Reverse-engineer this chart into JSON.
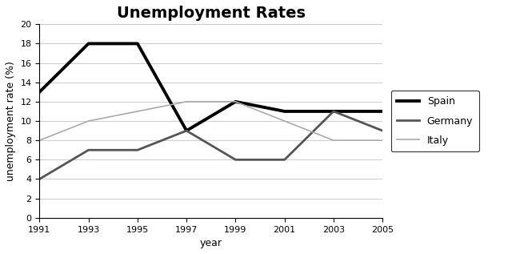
{
  "title": "Unemployment Rates",
  "xlabel": "year",
  "ylabel": "unemployment rate (%)",
  "years": [
    1991,
    1993,
    1995,
    1997,
    1999,
    2001,
    2003,
    2005
  ],
  "spain": [
    13,
    18,
    18,
    9,
    12,
    11,
    11,
    11
  ],
  "germany": [
    4,
    7,
    7,
    9,
    6,
    6,
    11,
    9
  ],
  "italy": [
    8,
    10,
    11,
    12,
    12,
    10,
    8,
    8
  ],
  "spain_color": "#000000",
  "germany_color": "#555555",
  "italy_color": "#aaaaaa",
  "spain_linewidth": 2.8,
  "germany_linewidth": 2.0,
  "italy_linewidth": 1.2,
  "ylim": [
    0,
    20
  ],
  "yticks": [
    0,
    2,
    4,
    6,
    8,
    10,
    12,
    14,
    16,
    18,
    20
  ],
  "background_color": "#ffffff",
  "title_fontsize": 14,
  "axis_label_fontsize": 9,
  "tick_fontsize": 8,
  "legend_entries": [
    "Spain",
    "Germany",
    "Italy"
  ],
  "legend_fontsize": 9,
  "grid_color": "#cccccc",
  "grid_linewidth": 0.7
}
